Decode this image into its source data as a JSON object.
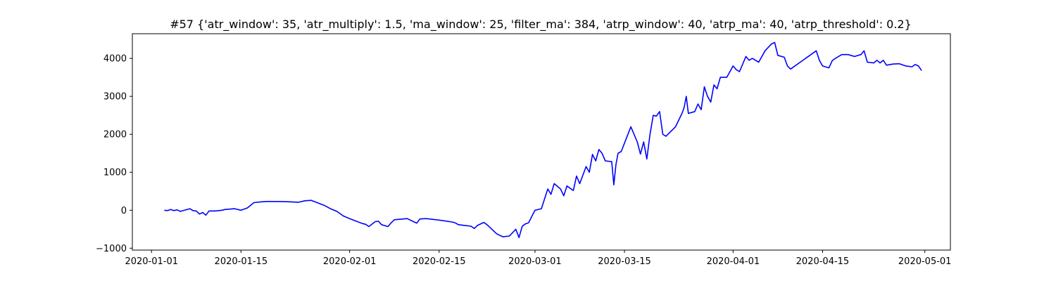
{
  "chart_data": {
    "type": "line",
    "title": "#57 {'atr_window': 35, 'atr_multiply': 1.5, 'ma_window': 25, 'filter_ma': 384, 'atrp_window': 40, 'atrp_ma': 40, 'atrp_threshold': 0.2}",
    "xlabel": "",
    "ylabel": "",
    "x_tick_labels": [
      "2020-01-01",
      "2020-01-15",
      "2020-02-01",
      "2020-02-15",
      "2020-03-01",
      "2020-03-15",
      "2020-04-01",
      "2020-04-15",
      "2020-05-01"
    ],
    "y_tick_labels": [
      "−1000",
      "0",
      "1000",
      "2000",
      "3000",
      "4000"
    ],
    "y_ticks": [
      -1000,
      0,
      1000,
      2000,
      3000,
      4000
    ],
    "xlim": [
      "2019-12-29",
      "2020-05-05"
    ],
    "ylim": [
      -1050,
      4650
    ],
    "grid": false,
    "line_color": "#0000ff",
    "series": [
      {
        "x": [
          "2020-01-03",
          "2020-01-03",
          "2020-01-04",
          "2020-01-04",
          "2020-01-05",
          "2020-01-05",
          "2020-01-07",
          "2020-01-07",
          "2020-01-08",
          "2020-01-08",
          "2020-01-09",
          "2020-01-09",
          "2020-01-10",
          "2020-01-11",
          "2020-01-12",
          "2020-01-12",
          "2020-01-14",
          "2020-01-15",
          "2020-01-16",
          "2020-01-17",
          "2020-01-18",
          "2020-01-19",
          "2020-01-21",
          "2020-01-22",
          "2020-01-23",
          "2020-01-24",
          "2020-01-25",
          "2020-01-26",
          "2020-01-28",
          "2020-01-29",
          "2020-01-30",
          "2020-01-31",
          "2020-02-01",
          "2020-02-03",
          "2020-02-03",
          "2020-02-04",
          "2020-02-05",
          "2020-02-05",
          "2020-02-06",
          "2020-02-07",
          "2020-02-07",
          "2020-02-08",
          "2020-02-10",
          "2020-02-11",
          "2020-02-11",
          "2020-02-12",
          "2020-02-13",
          "2020-02-15",
          "2020-02-17",
          "2020-02-17",
          "2020-02-18",
          "2020-02-19",
          "2020-02-20",
          "2020-02-20",
          "2020-02-21",
          "2020-02-22",
          "2020-02-22",
          "2020-02-24",
          "2020-02-25",
          "2020-02-26",
          "2020-02-27",
          "2020-02-27",
          "2020-02-28",
          "2020-02-28",
          "2020-02-29",
          "2020-03-01",
          "2020-03-02",
          "2020-03-03",
          "2020-03-03",
          "2020-03-04",
          "2020-03-05",
          "2020-03-05",
          "2020-03-06",
          "2020-03-07",
          "2020-03-07",
          "2020-03-08",
          "2020-03-09",
          "2020-03-09",
          "2020-03-10",
          "2020-03-10",
          "2020-03-11",
          "2020-03-11",
          "2020-03-12",
          "2020-03-13",
          "2020-03-13",
          "2020-03-13",
          "2020-03-14",
          "2020-03-14",
          "2020-03-16",
          "2020-03-17",
          "2020-03-17",
          "2020-03-18",
          "2020-03-18",
          "2020-03-19",
          "2020-03-19",
          "2020-03-20",
          "2020-03-20",
          "2020-03-21",
          "2020-03-21",
          "2020-03-23",
          "2020-03-24",
          "2020-03-24",
          "2020-03-24",
          "2020-03-25",
          "2020-03-26",
          "2020-03-26",
          "2020-03-27",
          "2020-03-27",
          "2020-03-28",
          "2020-03-28",
          "2020-03-29",
          "2020-03-29",
          "2020-03-30",
          "2020-03-31",
          "2020-04-01",
          "2020-04-01",
          "2020-04-02",
          "2020-04-03",
          "2020-04-03",
          "2020-04-04",
          "2020-04-05",
          "2020-04-06",
          "2020-04-07",
          "2020-04-07",
          "2020-04-08",
          "2020-04-09",
          "2020-04-09",
          "2020-04-10",
          "2020-04-13",
          "2020-04-14",
          "2020-04-14",
          "2020-04-15",
          "2020-04-16",
          "2020-04-16",
          "2020-04-17",
          "2020-04-18",
          "2020-04-19",
          "2020-04-20",
          "2020-04-21",
          "2020-04-21",
          "2020-04-22",
          "2020-04-23",
          "2020-04-23",
          "2020-04-24",
          "2020-04-24",
          "2020-04-25",
          "2020-04-26",
          "2020-04-27",
          "2020-04-28",
          "2020-04-29",
          "2020-04-29",
          "2020-04-30",
          "2020-04-30"
        ],
        "y": [
          0,
          -10,
          20,
          -10,
          10,
          -30,
          40,
          -10,
          -20,
          -100,
          -60,
          -130,
          -20,
          -20,
          0,
          20,
          40,
          0,
          60,
          200,
          220,
          230,
          230,
          225,
          220,
          210,
          250,
          260,
          130,
          40,
          -30,
          -150,
          -220,
          -350,
          -370,
          -430,
          -300,
          -290,
          -380,
          -430,
          -330,
          -250,
          -220,
          -300,
          -340,
          -230,
          -220,
          -260,
          -310,
          -330,
          -380,
          -400,
          -420,
          -480,
          -400,
          -320,
          -380,
          -620,
          -700,
          -680,
          -500,
          -720,
          -420,
          -360,
          -330,
          0,
          40,
          560,
          420,
          700,
          560,
          380,
          640,
          520,
          900,
          700,
          1150,
          1000,
          1470,
          1300,
          1600,
          1500,
          1300,
          1280,
          670,
          1200,
          1500,
          1550,
          2200,
          1800,
          1480,
          1800,
          1350,
          2000,
          2500,
          2480,
          2600,
          2000,
          1950,
          2200,
          2550,
          2700,
          3000,
          2550,
          2600,
          2800,
          2650,
          3250,
          3000,
          2850,
          3300,
          3200,
          3500,
          3500,
          3800,
          3700,
          3650,
          4050,
          3950,
          4000,
          3900,
          4200,
          4380,
          4420,
          4080,
          4030,
          3800,
          3720,
          4080,
          4200,
          3950,
          3800,
          3750,
          3940,
          4000,
          4100,
          4100,
          4050,
          4100,
          4200,
          3900,
          3880,
          3950,
          3880,
          3950,
          3820,
          3850,
          3860,
          3800,
          3780,
          3840,
          3800,
          3680
        ]
      }
    ]
  }
}
